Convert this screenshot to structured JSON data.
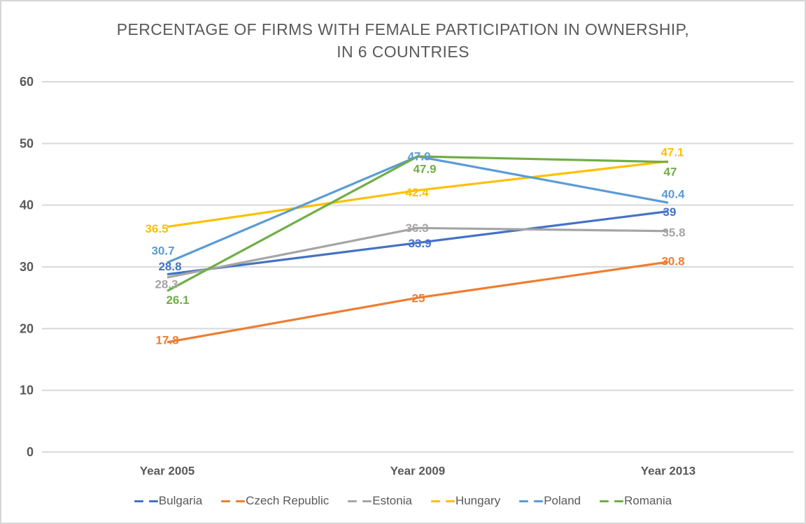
{
  "title": {
    "line1": "PERCENTAGE OF FIRMS WITH FEMALE PARTICIPATION IN OWNERSHIP,",
    "line2": "IN 6 COUNTRIES"
  },
  "chart_data": {
    "type": "line",
    "categories": [
      "Year 2005",
      "Year 2009",
      "Year 2013"
    ],
    "series": [
      {
        "name": "Bulgaria",
        "color": "#4472C4",
        "values": [
          28.8,
          33.9,
          39
        ]
      },
      {
        "name": "Czech Republic",
        "color": "#ED7D31",
        "values": [
          17.8,
          25,
          30.8
        ]
      },
      {
        "name": "Estonia",
        "color": "#A5A5A5",
        "values": [
          28.3,
          36.3,
          35.8
        ]
      },
      {
        "name": "Hungary",
        "color": "#FFC000",
        "values": [
          36.5,
          42.4,
          47.1
        ]
      },
      {
        "name": "Poland",
        "color": "#5B9BD5",
        "values": [
          30.7,
          47.9,
          40.4
        ]
      },
      {
        "name": "Romania",
        "color": "#70AD47",
        "values": [
          26.1,
          47.9,
          47
        ]
      }
    ],
    "y_ticks": [
      0,
      10,
      20,
      30,
      40,
      50,
      60
    ],
    "ylim": [
      0,
      60
    ],
    "grid": true,
    "data_labels": true,
    "legend_position": "bottom"
  },
  "colors": {
    "text": "#595959",
    "gridline": "#D9D9D9",
    "background": "#FFFFFF"
  }
}
